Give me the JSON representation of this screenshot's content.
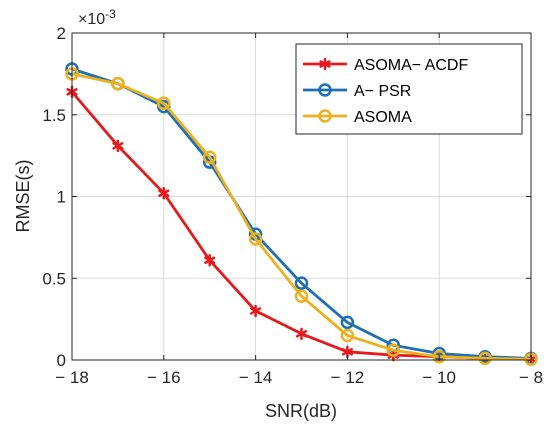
{
  "chart_data": {
    "type": "line",
    "xlabel": "SNR(dB)",
    "ylabel": "RMSE(s)",
    "xlim": [
      -18,
      -8
    ],
    "ylim": [
      0,
      2
    ],
    "y_multiplier_label": "×10",
    "y_multiplier_exponent": "-3",
    "x_ticks": [
      -18,
      -16,
      -14,
      -12,
      -10,
      -8
    ],
    "x_tick_labels": [
      "− 18",
      "− 16",
      "− 14",
      "− 12",
      "− 10",
      "− 8"
    ],
    "y_ticks": [
      0,
      0.5,
      1,
      1.5,
      2
    ],
    "y_tick_labels": [
      "0",
      "0.5",
      "1",
      "1.5",
      "2"
    ],
    "grid": true,
    "legend_position": "top-right",
    "x": [
      -18,
      -17,
      -16,
      -15,
      -14,
      -13,
      -12,
      -11,
      -10,
      -9,
      -8
    ],
    "series": [
      {
        "name": "ASOMA− ACDF",
        "color": "#e41a1c",
        "marker": "asterisk",
        "values": [
          1.64,
          1.31,
          1.02,
          0.61,
          0.3,
          0.16,
          0.05,
          0.03,
          0.02,
          0.01,
          0.005
        ]
      },
      {
        "name": "A− PSR",
        "color": "#1f6fb5",
        "marker": "circle",
        "values": [
          1.78,
          1.69,
          1.55,
          1.21,
          0.77,
          0.47,
          0.23,
          0.09,
          0.04,
          0.02,
          0.01
        ]
      },
      {
        "name": "ASOMA",
        "color": "#edb120",
        "marker": "circle",
        "values": [
          1.75,
          1.69,
          1.57,
          1.24,
          0.74,
          0.39,
          0.15,
          0.06,
          0.02,
          0.01,
          0.005
        ]
      }
    ]
  }
}
